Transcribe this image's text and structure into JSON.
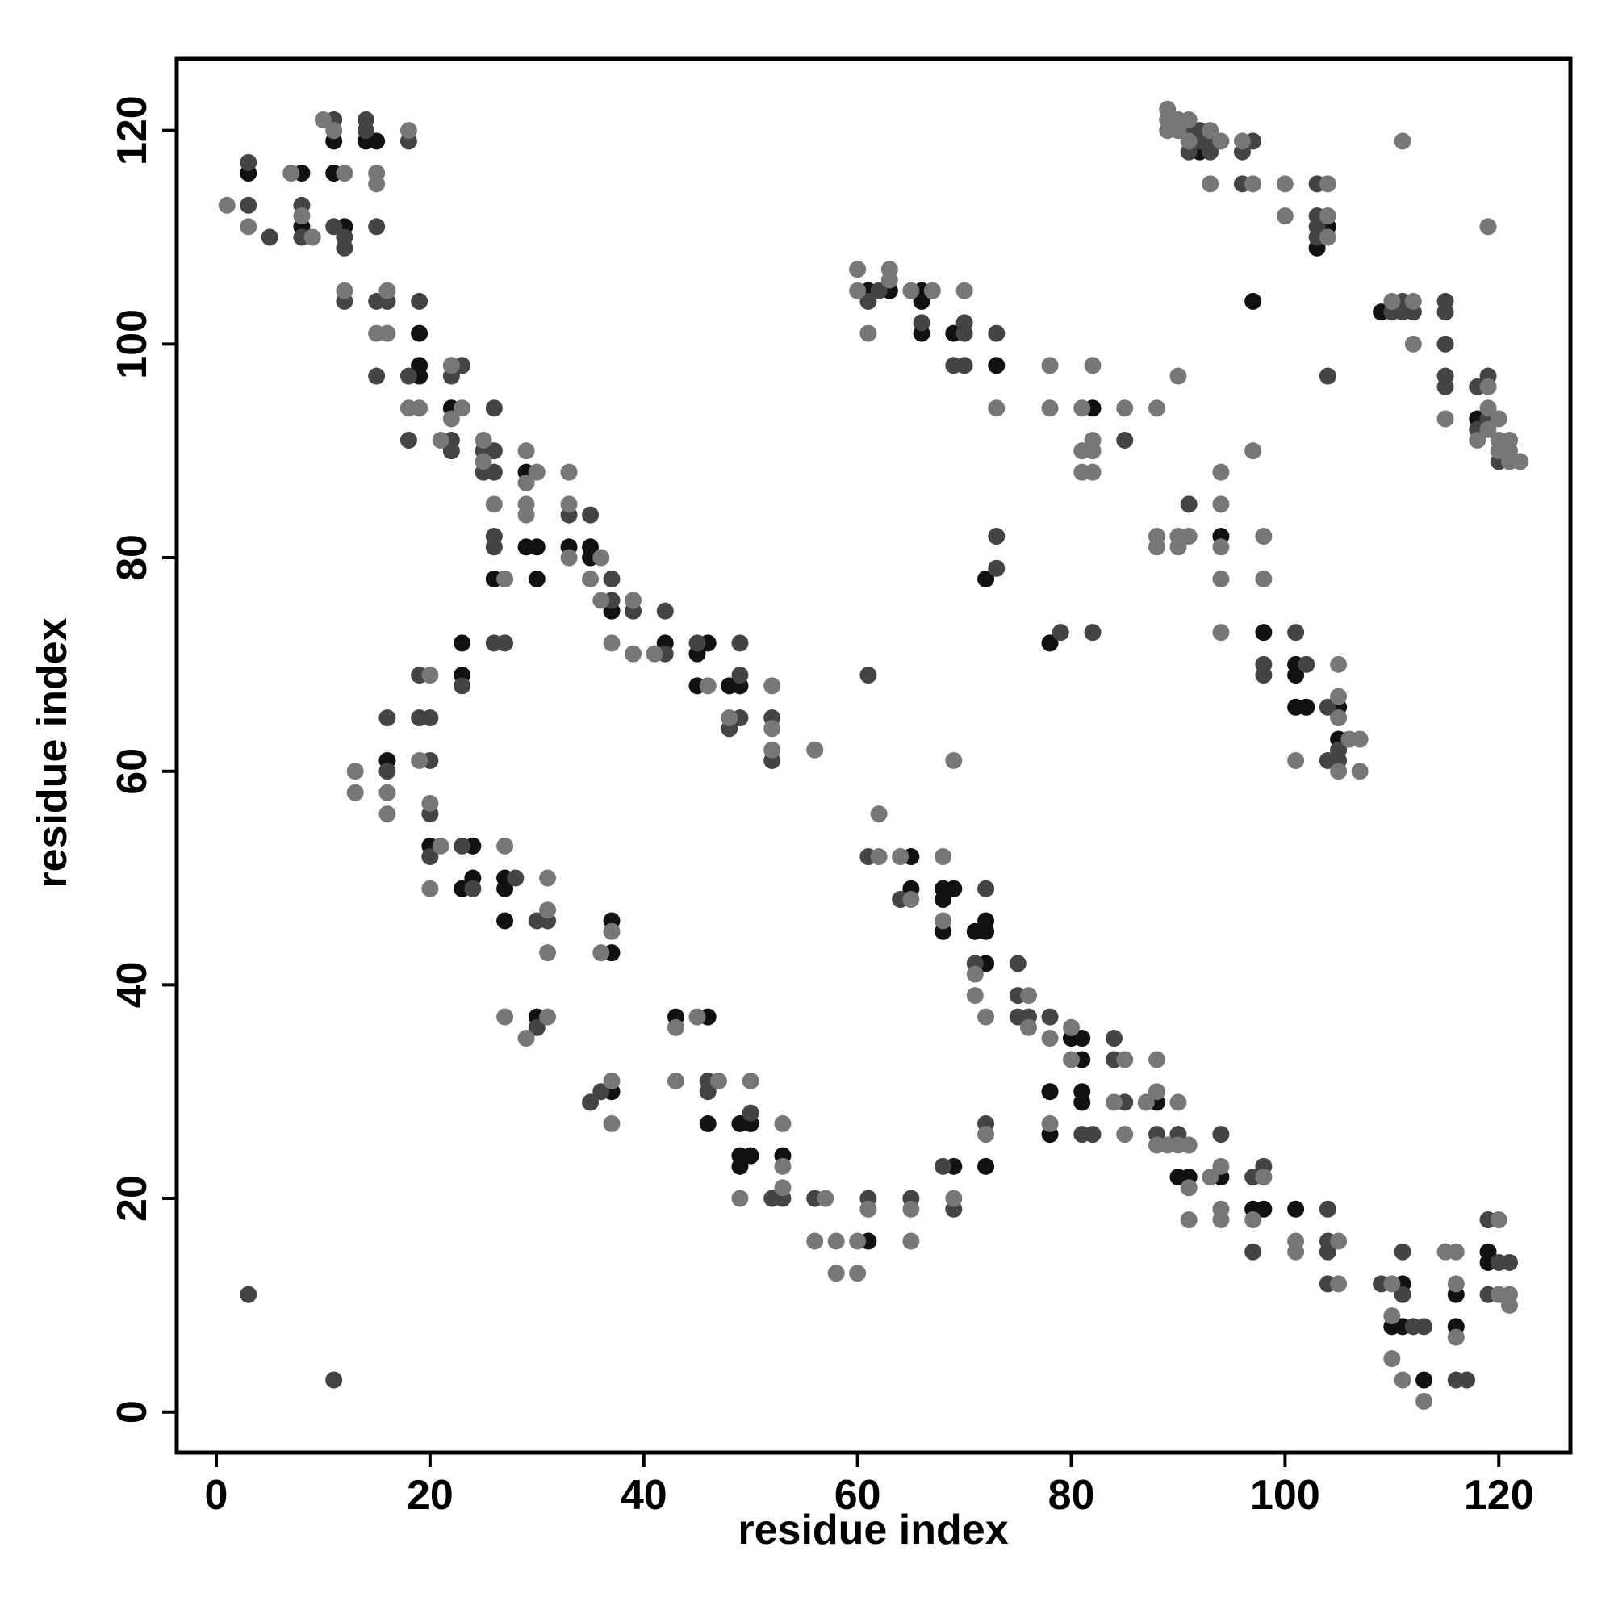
{
  "chart_data": {
    "type": "scatter",
    "x_label": "residue index",
    "y_label": "residue index",
    "xlim": [
      -3.7,
      126.7
    ],
    "ylim": [
      -3.8,
      126.7
    ],
    "xticks": [
      0,
      20,
      40,
      60,
      80,
      100,
      120
    ],
    "yticks": [
      0,
      20,
      40,
      60,
      80,
      100,
      120
    ],
    "grid": false,
    "series": [
      {
        "color": "#111111",
        "x": [
          3,
          8,
          8,
          11,
          11,
          12,
          14,
          15,
          19,
          19,
          19,
          22,
          26,
          29,
          29,
          30,
          30,
          33,
          35,
          35,
          37,
          42,
          46,
          45,
          45,
          48,
          49,
          23,
          23,
          16,
          20,
          24,
          23,
          24,
          27,
          27,
          27,
          30,
          37,
          37,
          43,
          46,
          37,
          46,
          49,
          50,
          49,
          50,
          49,
          53,
          61,
          69,
          72,
          65,
          65,
          68,
          69,
          68,
          68,
          71,
          72,
          72,
          72,
          80,
          81,
          81,
          78,
          81,
          81,
          88,
          78,
          90,
          91,
          94,
          97,
          98,
          101,
          111,
          110,
          111,
          113,
          116,
          116,
          119,
          119,
          61,
          63,
          66,
          66,
          66,
          69,
          73,
          82,
          94,
          98,
          101,
          101,
          101,
          102,
          105,
          105,
          72,
          78,
          92,
          97,
          104,
          103,
          109,
          118
        ],
        "values": [
          116,
          116,
          111,
          119,
          116,
          111,
          119,
          119,
          101,
          98,
          97,
          94,
          78,
          88,
          81,
          81,
          78,
          81,
          81,
          80,
          75,
          72,
          72,
          71,
          68,
          68,
          68,
          72,
          69,
          61,
          53,
          53,
          49,
          50,
          50,
          49,
          46,
          37,
          46,
          43,
          37,
          37,
          30,
          27,
          27,
          27,
          24,
          24,
          23,
          24,
          16,
          23,
          23,
          52,
          49,
          49,
          49,
          48,
          45,
          45,
          46,
          45,
          42,
          35,
          35,
          33,
          30,
          30,
          29,
          29,
          26,
          22,
          22,
          22,
          19,
          19,
          19,
          12,
          8,
          8,
          3,
          11,
          8,
          15,
          14,
          105,
          105,
          105,
          104,
          101,
          101,
          98,
          94,
          82,
          73,
          70,
          69,
          66,
          66,
          66,
          63,
          78,
          72,
          118,
          104,
          111,
          109,
          103,
          93
        ]
      },
      {
        "color": "#444444",
        "x": [
          3,
          3,
          5,
          8,
          8,
          11,
          11,
          12,
          12,
          14,
          14,
          15,
          18,
          12,
          15,
          16,
          15,
          19,
          18,
          23,
          22,
          18,
          22,
          22,
          25,
          26,
          25,
          26,
          26,
          26,
          26,
          26,
          27,
          33,
          35,
          37,
          37,
          39,
          42,
          42,
          45,
          49,
          49,
          49,
          48,
          52,
          52,
          23,
          19,
          19,
          20,
          20,
          16,
          16,
          20,
          20,
          23,
          24,
          28,
          30,
          31,
          30,
          35,
          36,
          46,
          46,
          50,
          52,
          53,
          56,
          61,
          65,
          68,
          69,
          72,
          61,
          64,
          72,
          71,
          75,
          75,
          75,
          76,
          78,
          84,
          84,
          85,
          81,
          82,
          88,
          90,
          94,
          97,
          98,
          97,
          104,
          104,
          104,
          104,
          109,
          111,
          111,
          112,
          113,
          116,
          117,
          119,
          120,
          121,
          119,
          3,
          11,
          61,
          62,
          66,
          70,
          70,
          69,
          70,
          73,
          85,
          91,
          98,
          98,
          101,
          102,
          104,
          105,
          105,
          104,
          73,
          73,
          79,
          82,
          61,
          91,
          92,
          92,
          93,
          91,
          93,
          97,
          96,
          96,
          103,
          103,
          103,
          103,
          110,
          111,
          111,
          112,
          104,
          115,
          115,
          115,
          115,
          115,
          118,
          119,
          118,
          119,
          120
        ],
        "values": [
          117,
          113,
          110,
          113,
          110,
          121,
          111,
          110,
          109,
          121,
          120,
          111,
          119,
          104,
          104,
          104,
          97,
          104,
          97,
          98,
          97,
          91,
          91,
          90,
          90,
          90,
          88,
          88,
          94,
          82,
          81,
          72,
          72,
          84,
          84,
          76,
          78,
          75,
          75,
          71,
          72,
          72,
          69,
          65,
          64,
          65,
          61,
          68,
          69,
          65,
          65,
          61,
          65,
          60,
          56,
          52,
          53,
          49,
          50,
          46,
          46,
          36,
          29,
          30,
          31,
          30,
          28,
          20,
          20,
          20,
          20,
          20,
          23,
          19,
          27,
          52,
          48,
          49,
          42,
          42,
          39,
          37,
          37,
          37,
          35,
          33,
          29,
          26,
          26,
          26,
          26,
          26,
          22,
          23,
          15,
          19,
          16,
          15,
          12,
          12,
          15,
          11,
          8,
          8,
          3,
          3,
          18,
          14,
          14,
          11,
          11,
          3,
          104,
          105,
          102,
          102,
          101,
          98,
          98,
          101,
          91,
          85,
          70,
          69,
          73,
          70,
          66,
          62,
          61,
          61,
          82,
          79,
          73,
          73,
          69,
          120,
          120,
          119,
          119,
          118,
          118,
          119,
          118,
          115,
          115,
          112,
          111,
          110,
          103,
          104,
          103,
          103,
          97,
          104,
          103,
          100,
          97,
          96,
          96,
          97,
          92,
          93,
          89
        ]
      },
      {
        "color": "#777777",
        "x": [
          1,
          3,
          7,
          8,
          9,
          10,
          11,
          12,
          15,
          15,
          18,
          12,
          16,
          15,
          16,
          18,
          19,
          22,
          23,
          22,
          21,
          25,
          25,
          26,
          27,
          29,
          30,
          29,
          29,
          29,
          33,
          33,
          33,
          36,
          35,
          36,
          37,
          39,
          39,
          41,
          46,
          48,
          52,
          52,
          52,
          56,
          20,
          19,
          16,
          16,
          13,
          13,
          20,
          21,
          20,
          27,
          31,
          31,
          31,
          27,
          29,
          31,
          36,
          37,
          43,
          45,
          37,
          37,
          43,
          47,
          50,
          49,
          53,
          53,
          53,
          57,
          56,
          58,
          58,
          60,
          60,
          61,
          65,
          65,
          69,
          72,
          62,
          62,
          64,
          65,
          68,
          68,
          71,
          71,
          72,
          76,
          76,
          78,
          80,
          80,
          85,
          84,
          87,
          88,
          88,
          78,
          85,
          88,
          89,
          90,
          91,
          90,
          93,
          91,
          91,
          94,
          94,
          94,
          98,
          97,
          101,
          101,
          105,
          105,
          110,
          110,
          110,
          111,
          113,
          115,
          116,
          116,
          116,
          120,
          120,
          121,
          121,
          60,
          60,
          63,
          63,
          61,
          65,
          67,
          70,
          73,
          78,
          78,
          81,
          82,
          85,
          88,
          81,
          82,
          82,
          81,
          82,
          90,
          88,
          88,
          90,
          91,
          90,
          94,
          94,
          94,
          94,
          94,
          97,
          98,
          98,
          101,
          105,
          105,
          105,
          105,
          106,
          107,
          107,
          69,
          89,
          89,
          89,
          90,
          91,
          90,
          91,
          93,
          94,
          93,
          96,
          97,
          100,
          100,
          104,
          104,
          104,
          111,
          119,
          110,
          112,
          112,
          115,
          119,
          119,
          118,
          119,
          120,
          120,
          120,
          121,
          121,
          121,
          122
        ],
        "values": [
          113,
          111,
          116,
          112,
          110,
          121,
          120,
          116,
          116,
          115,
          120,
          105,
          105,
          101,
          101,
          94,
          94,
          98,
          94,
          93,
          91,
          91,
          89,
          85,
          78,
          90,
          88,
          87,
          85,
          84,
          88,
          85,
          80,
          80,
          78,
          76,
          72,
          76,
          71,
          71,
          68,
          65,
          68,
          64,
          62,
          62,
          69,
          61,
          58,
          56,
          60,
          58,
          57,
          53,
          49,
          53,
          50,
          47,
          43,
          37,
          35,
          37,
          43,
          45,
          36,
          37,
          31,
          27,
          31,
          31,
          31,
          20,
          27,
          23,
          21,
          20,
          16,
          16,
          13,
          16,
          13,
          19,
          19,
          16,
          20,
          26,
          56,
          52,
          52,
          48,
          52,
          46,
          41,
          39,
          37,
          39,
          36,
          35,
          36,
          33,
          33,
          29,
          29,
          30,
          33,
          27,
          26,
          25,
          25,
          25,
          25,
          29,
          22,
          21,
          18,
          23,
          19,
          18,
          22,
          18,
          16,
          15,
          16,
          12,
          12,
          9,
          5,
          3,
          1,
          15,
          15,
          12,
          7,
          18,
          11,
          11,
          10,
          107,
          105,
          107,
          106,
          101,
          105,
          105,
          105,
          94,
          98,
          94,
          94,
          98,
          94,
          94,
          90,
          90,
          91,
          88,
          88,
          97,
          82,
          81,
          82,
          82,
          81,
          88,
          85,
          81,
          78,
          73,
          90,
          82,
          78,
          61,
          67,
          70,
          65,
          60,
          63,
          63,
          60,
          61,
          122,
          121,
          120,
          121,
          121,
          120,
          119,
          120,
          119,
          115,
          119,
          115,
          115,
          112,
          115,
          112,
          110,
          119,
          111,
          104,
          104,
          100,
          93,
          96,
          94,
          91,
          92,
          93,
          91,
          90,
          91,
          90,
          89,
          89
        ]
      }
    ]
  }
}
